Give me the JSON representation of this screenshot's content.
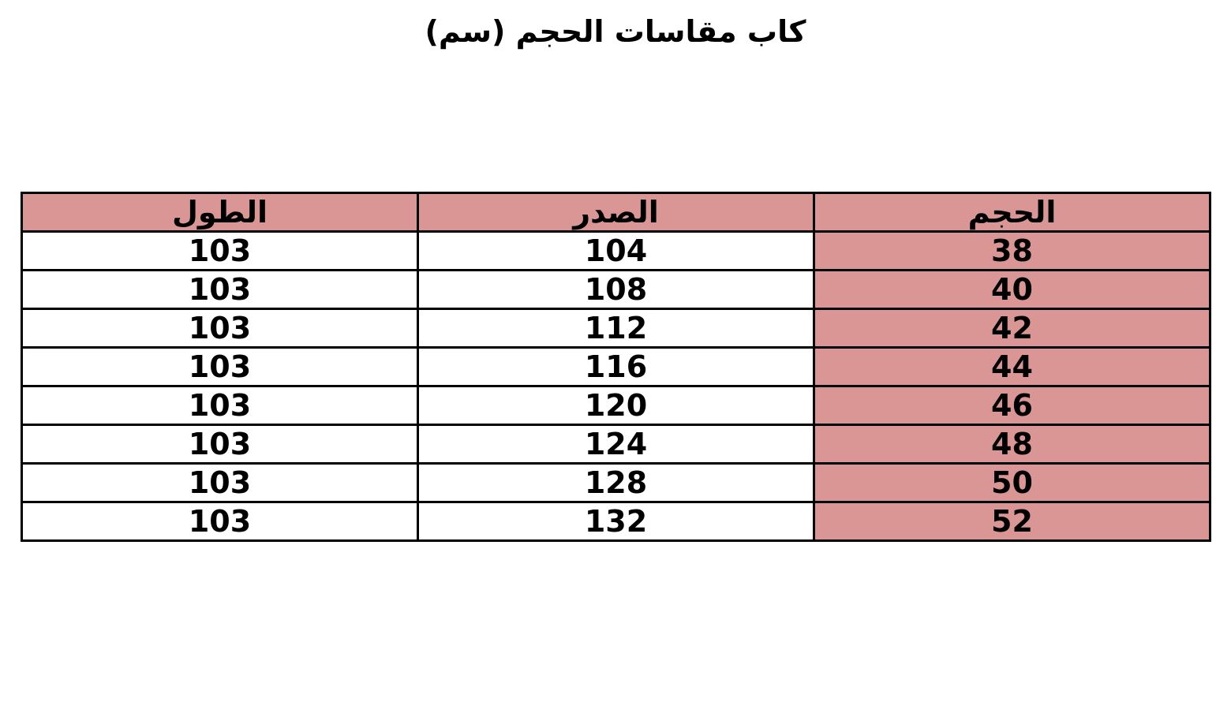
{
  "title": "كاب مقاسات الحجم (سم)",
  "colors": {
    "header_bg": "#d99694",
    "size_col_bg": "#d99694"
  },
  "table": {
    "headers": [
      "الحجم",
      "الصدر",
      "الطول"
    ],
    "rows": [
      [
        "38",
        "104",
        "103"
      ],
      [
        "40",
        "108",
        "103"
      ],
      [
        "42",
        "112",
        "103"
      ],
      [
        "44",
        "116",
        "103"
      ],
      [
        "46",
        "120",
        "103"
      ],
      [
        "48",
        "124",
        "103"
      ],
      [
        "50",
        "128",
        "103"
      ],
      [
        "52",
        "132",
        "103"
      ]
    ]
  }
}
